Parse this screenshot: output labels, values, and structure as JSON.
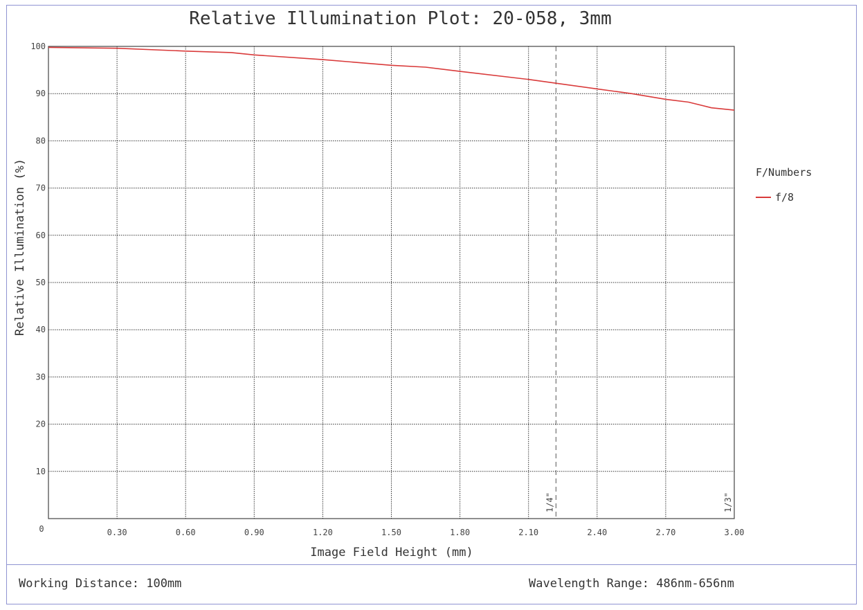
{
  "chart_data": {
    "type": "line",
    "title": "Relative Illumination Plot: 20-058, 3mm",
    "xlabel": "Image Field Height (mm)",
    "ylabel": "Relative Illumination (%)",
    "xlim": [
      0,
      3.0
    ],
    "ylim": [
      0,
      100
    ],
    "x_ticks": [
      0.3,
      0.6,
      0.9,
      1.2,
      1.5,
      1.8,
      2.1,
      2.4,
      2.7,
      3.0
    ],
    "x_tick_labels": [
      "0.30",
      "0.60",
      "0.90",
      "1.20",
      "1.50",
      "1.80",
      "2.10",
      "2.40",
      "2.70",
      "3.00"
    ],
    "y_ticks": [
      10,
      20,
      30,
      40,
      50,
      60,
      70,
      80,
      90,
      100
    ],
    "y_tick_labels": [
      "10",
      "20",
      "30",
      "40",
      "50",
      "60",
      "70",
      "80",
      "90",
      "100"
    ],
    "origin_label": "0",
    "grid": true,
    "legend_title": "F/Numbers",
    "legend_position": "right",
    "sensor_markers": [
      {
        "label": "1/4\"",
        "x": 2.22
      },
      {
        "label": "1/3\"",
        "x": 3.0
      }
    ],
    "series": [
      {
        "name": "f/8",
        "color": "#d93a3a",
        "x": [
          0,
          0.3,
          0.6,
          0.8,
          0.9,
          1.2,
          1.5,
          1.65,
          1.8,
          2.1,
          2.22,
          2.4,
          2.55,
          2.7,
          2.8,
          2.9,
          3.0
        ],
        "y": [
          99.8,
          99.6,
          99.0,
          98.7,
          98.2,
          97.2,
          96.0,
          95.6,
          94.7,
          93.0,
          92.2,
          91.0,
          90.0,
          88.8,
          88.2,
          87.0,
          86.5
        ]
      }
    ]
  },
  "footer": {
    "working_distance": "Working Distance: 100mm",
    "wavelength_range": "Wavelength Range: 486nm-656nm"
  }
}
